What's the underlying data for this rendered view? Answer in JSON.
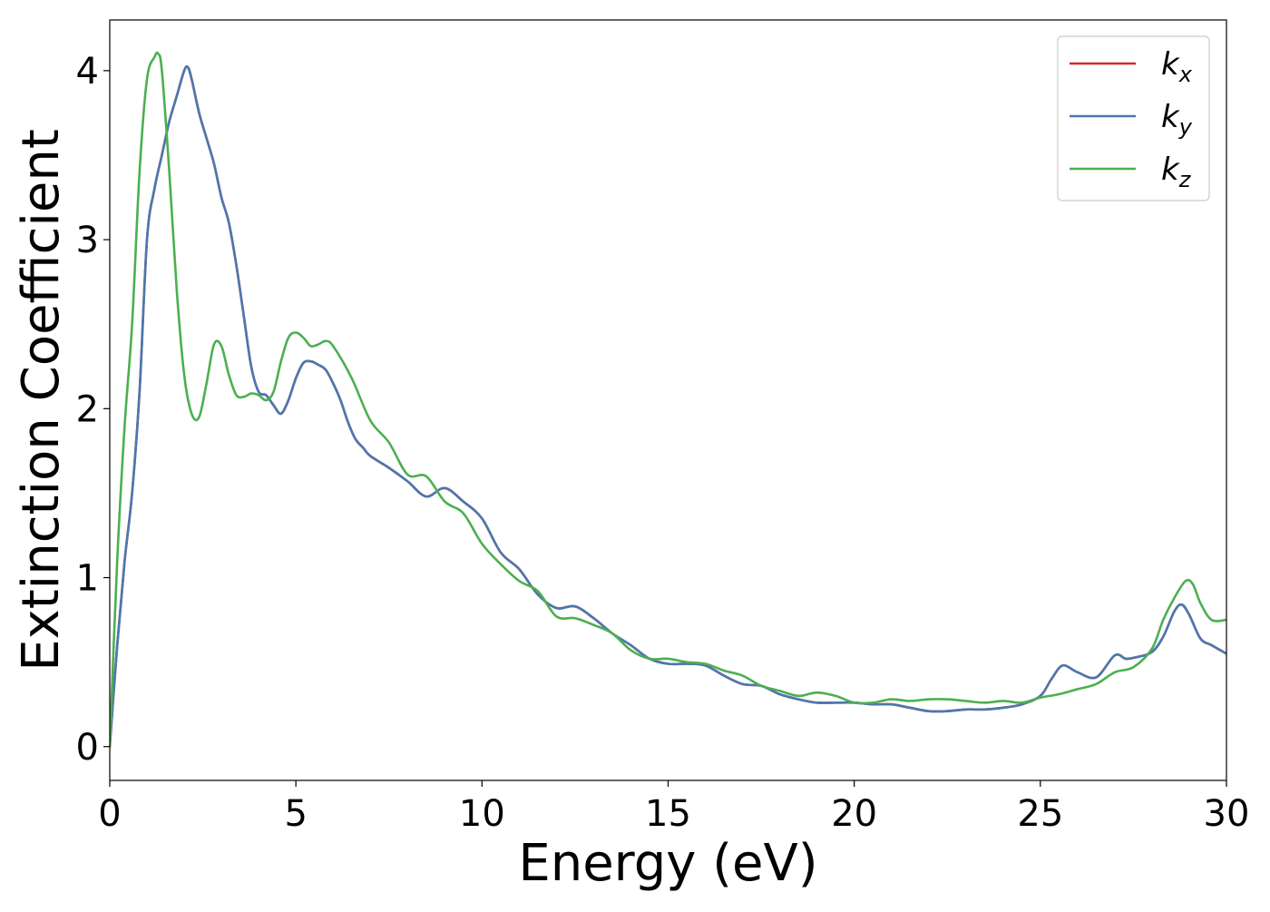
{
  "chart_data": {
    "type": "line",
    "xlabel": "Energy (eV)",
    "ylabel": "Extinction Coefficient",
    "xlim": [
      0,
      30
    ],
    "ylim": [
      -0.2,
      4.3
    ],
    "xticks": [
      0,
      5,
      10,
      15,
      20,
      25,
      30
    ],
    "xtick_labels": [
      "0",
      "5",
      "10",
      "15",
      "20",
      "25",
      "30"
    ],
    "yticks": [
      0,
      1,
      2,
      3,
      4
    ],
    "ytick_labels": [
      "0",
      "1",
      "2",
      "3",
      "4"
    ],
    "grid": false,
    "legend_position": "top-right",
    "colors": {
      "kx": "#d62728",
      "ky": "#4a78b0",
      "kz": "#4caf50"
    },
    "series": [
      {
        "key": "kx",
        "legend_base": "k",
        "legend_sub": "x",
        "x": [
          0,
          0.2,
          0.4,
          0.6,
          0.8,
          1.0,
          1.2,
          1.4,
          1.6,
          1.8,
          2.0,
          2.1,
          2.2,
          2.4,
          2.6,
          2.8,
          3.0,
          3.2,
          3.4,
          3.6,
          3.8,
          4.0,
          4.2,
          4.4,
          4.6,
          4.8,
          5.0,
          5.2,
          5.4,
          5.6,
          5.8,
          6.0,
          6.2,
          6.4,
          6.6,
          6.8,
          7.0,
          7.5,
          8.0,
          8.5,
          9.0,
          9.5,
          10.0,
          10.5,
          11.0,
          11.5,
          12.0,
          12.5,
          13.0,
          13.5,
          14.0,
          14.5,
          15.0,
          15.5,
          16.0,
          16.5,
          17.0,
          17.5,
          18.0,
          18.5,
          19.0,
          19.5,
          20.0,
          20.5,
          21.0,
          21.5,
          22.0,
          22.5,
          23.0,
          23.5,
          24.0,
          24.5,
          25.0,
          25.3,
          25.6,
          26.0,
          26.5,
          27.0,
          27.3,
          27.6,
          28.0,
          28.3,
          28.6,
          28.8,
          29.0,
          29.3,
          29.6,
          30.0
        ],
        "y": [
          0,
          0.6,
          1.1,
          1.5,
          2.1,
          3.0,
          3.3,
          3.5,
          3.7,
          3.85,
          4.0,
          4.02,
          3.95,
          3.75,
          3.6,
          3.45,
          3.25,
          3.1,
          2.85,
          2.55,
          2.25,
          2.1,
          2.08,
          2.02,
          1.97,
          2.05,
          2.18,
          2.27,
          2.28,
          2.26,
          2.23,
          2.15,
          2.05,
          1.92,
          1.82,
          1.77,
          1.72,
          1.65,
          1.57,
          1.48,
          1.53,
          1.45,
          1.35,
          1.15,
          1.05,
          0.9,
          0.82,
          0.83,
          0.76,
          0.67,
          0.6,
          0.52,
          0.49,
          0.49,
          0.48,
          0.42,
          0.37,
          0.36,
          0.31,
          0.28,
          0.26,
          0.26,
          0.26,
          0.25,
          0.25,
          0.23,
          0.21,
          0.21,
          0.22,
          0.22,
          0.23,
          0.25,
          0.3,
          0.4,
          0.48,
          0.44,
          0.41,
          0.54,
          0.52,
          0.53,
          0.56,
          0.65,
          0.8,
          0.84,
          0.78,
          0.64,
          0.6,
          0.55
        ]
      },
      {
        "key": "ky",
        "legend_base": "k",
        "legend_sub": "y",
        "x": [
          0,
          0.2,
          0.4,
          0.6,
          0.8,
          1.0,
          1.2,
          1.4,
          1.6,
          1.8,
          2.0,
          2.1,
          2.2,
          2.4,
          2.6,
          2.8,
          3.0,
          3.2,
          3.4,
          3.6,
          3.8,
          4.0,
          4.2,
          4.4,
          4.6,
          4.8,
          5.0,
          5.2,
          5.4,
          5.6,
          5.8,
          6.0,
          6.2,
          6.4,
          6.6,
          6.8,
          7.0,
          7.5,
          8.0,
          8.5,
          9.0,
          9.5,
          10.0,
          10.5,
          11.0,
          11.5,
          12.0,
          12.5,
          13.0,
          13.5,
          14.0,
          14.5,
          15.0,
          15.5,
          16.0,
          16.5,
          17.0,
          17.5,
          18.0,
          18.5,
          19.0,
          19.5,
          20.0,
          20.5,
          21.0,
          21.5,
          22.0,
          22.5,
          23.0,
          23.5,
          24.0,
          24.5,
          25.0,
          25.3,
          25.6,
          26.0,
          26.5,
          27.0,
          27.3,
          27.6,
          28.0,
          28.3,
          28.6,
          28.8,
          29.0,
          29.3,
          29.6,
          30.0
        ],
        "y": [
          0,
          0.6,
          1.1,
          1.5,
          2.1,
          3.0,
          3.3,
          3.5,
          3.7,
          3.85,
          4.0,
          4.02,
          3.95,
          3.75,
          3.6,
          3.45,
          3.25,
          3.1,
          2.85,
          2.55,
          2.25,
          2.1,
          2.08,
          2.02,
          1.97,
          2.05,
          2.18,
          2.27,
          2.28,
          2.26,
          2.23,
          2.15,
          2.05,
          1.92,
          1.82,
          1.77,
          1.72,
          1.65,
          1.57,
          1.48,
          1.53,
          1.45,
          1.35,
          1.15,
          1.05,
          0.9,
          0.82,
          0.83,
          0.76,
          0.67,
          0.6,
          0.52,
          0.49,
          0.49,
          0.48,
          0.42,
          0.37,
          0.36,
          0.31,
          0.28,
          0.26,
          0.26,
          0.26,
          0.25,
          0.25,
          0.23,
          0.21,
          0.21,
          0.22,
          0.22,
          0.23,
          0.25,
          0.3,
          0.4,
          0.48,
          0.44,
          0.41,
          0.54,
          0.52,
          0.53,
          0.56,
          0.65,
          0.8,
          0.84,
          0.78,
          0.64,
          0.6,
          0.55
        ]
      },
      {
        "key": "kz",
        "legend_base": "k",
        "legend_sub": "z",
        "x": [
          0,
          0.2,
          0.4,
          0.6,
          0.8,
          1.0,
          1.2,
          1.3,
          1.4,
          1.6,
          1.8,
          2.0,
          2.2,
          2.4,
          2.6,
          2.8,
          3.0,
          3.2,
          3.4,
          3.6,
          3.8,
          4.0,
          4.2,
          4.4,
          4.6,
          4.8,
          5.0,
          5.2,
          5.4,
          5.6,
          5.8,
          6.0,
          6.5,
          7.0,
          7.5,
          8.0,
          8.5,
          9.0,
          9.5,
          10.0,
          10.5,
          11.0,
          11.5,
          12.0,
          12.5,
          13.0,
          13.5,
          14.0,
          14.5,
          15.0,
          15.5,
          16.0,
          16.5,
          17.0,
          17.5,
          18.0,
          18.5,
          19.0,
          19.5,
          20.0,
          20.5,
          21.0,
          21.5,
          22.0,
          22.5,
          23.0,
          23.5,
          24.0,
          24.5,
          25.0,
          25.5,
          26.0,
          26.5,
          27.0,
          27.5,
          28.0,
          28.3,
          28.6,
          28.9,
          29.1,
          29.3,
          29.6,
          30.0
        ],
        "y": [
          0,
          1.1,
          1.9,
          2.5,
          3.4,
          3.95,
          4.08,
          4.1,
          4.0,
          3.4,
          2.7,
          2.2,
          1.97,
          1.95,
          2.15,
          2.38,
          2.37,
          2.2,
          2.08,
          2.07,
          2.09,
          2.08,
          2.05,
          2.1,
          2.28,
          2.42,
          2.45,
          2.42,
          2.37,
          2.38,
          2.4,
          2.37,
          2.18,
          1.93,
          1.8,
          1.61,
          1.6,
          1.45,
          1.38,
          1.2,
          1.08,
          0.98,
          0.92,
          0.77,
          0.76,
          0.72,
          0.67,
          0.57,
          0.52,
          0.52,
          0.5,
          0.49,
          0.45,
          0.42,
          0.36,
          0.33,
          0.3,
          0.32,
          0.3,
          0.26,
          0.26,
          0.28,
          0.27,
          0.28,
          0.28,
          0.27,
          0.26,
          0.27,
          0.26,
          0.29,
          0.31,
          0.34,
          0.37,
          0.44,
          0.47,
          0.58,
          0.75,
          0.88,
          0.98,
          0.96,
          0.85,
          0.75,
          0.75
        ]
      }
    ]
  }
}
